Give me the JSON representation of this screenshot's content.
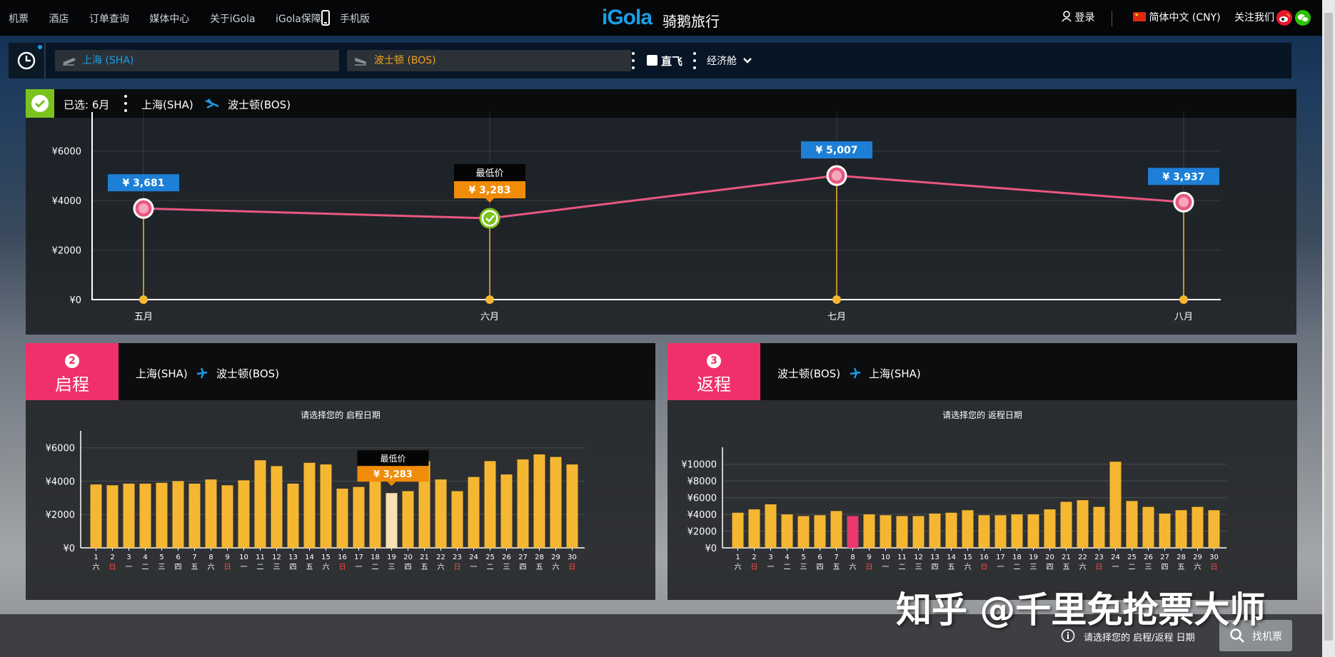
{
  "topnav": {
    "items": [
      "机票",
      "酒店",
      "订单查询",
      "媒体中心",
      "关于iGola",
      "iGola保障"
    ],
    "mobile_label": "手机版",
    "logo_text": "iGola",
    "logo_cn": "骑鹅旅行",
    "login": "登录",
    "language": "简体中文 (CNY)",
    "follow": "关注我们"
  },
  "search": {
    "from_value": "上海 (SHA)",
    "to_value": "波士顿 (BOS)",
    "direct_label": "直飞",
    "cabin_label": "经济舱"
  },
  "main": {
    "selected": "已选: 6月",
    "from": "上海(SHA)",
    "to": "波士顿(BOS)",
    "lowest_label": "最低价"
  },
  "outbound": {
    "num": "2",
    "title": "启程",
    "from": "上海(SHA)",
    "to": "波士顿(BOS)",
    "subtitle": "请选择您的 启程日期",
    "lowest_label": "最低价",
    "lowest_price": "¥ 3,283"
  },
  "return": {
    "num": "3",
    "title": "返程",
    "from": "波士顿(BOS)",
    "to": "上海(SHA)",
    "subtitle": "请选择您的 返程日期"
  },
  "footer": {
    "hint": "请选择您的 启程/返程 日期",
    "button": "找机票",
    "watermark": "知乎 @千里免抢票大师"
  },
  "colors": {
    "line": "#e9577f",
    "bar": "#f5b731",
    "accent_pink": "#f0306a",
    "label_blue": "#1e7fd6",
    "lowest_orange": "#f08c0a",
    "selected_green": "#7cc21e"
  },
  "chart_data": [
    {
      "type": "line",
      "categories": [
        "五月",
        "六月",
        "七月",
        "八月"
      ],
      "values": [
        3681,
        3283,
        5007,
        3937
      ],
      "value_labels": [
        "¥ 3,681",
        "¥ 3,283",
        "¥ 5,007",
        "¥ 3,937"
      ],
      "yticks": [
        "¥0",
        "¥2000",
        "¥4000",
        "¥6000"
      ],
      "ylim": [
        0,
        7000
      ],
      "selected_index": 1,
      "lowest_index": 1
    },
    {
      "type": "bar",
      "days": [
        "1",
        "2",
        "3",
        "4",
        "5",
        "6",
        "7",
        "8",
        "9",
        "10",
        "11",
        "12",
        "13",
        "14",
        "15",
        "16",
        "17",
        "18",
        "19",
        "20",
        "21",
        "22",
        "23",
        "24",
        "25",
        "26",
        "27",
        "28",
        "29",
        "30"
      ],
      "weekdays": [
        "六",
        "日",
        "一",
        "二",
        "三",
        "四",
        "五",
        "六",
        "日",
        "一",
        "二",
        "三",
        "四",
        "五",
        "六",
        "日",
        "一",
        "二",
        "三",
        "四",
        "五",
        "六",
        "日",
        "一",
        "二",
        "三",
        "四",
        "五",
        "六",
        "日"
      ],
      "values": [
        3800,
        3750,
        3850,
        3850,
        3900,
        4000,
        3850,
        4100,
        3750,
        4050,
        5250,
        4900,
        3850,
        5100,
        5000,
        3550,
        3650,
        4300,
        3283,
        3400,
        5200,
        4100,
        3400,
        4250,
        5200,
        4400,
        5300,
        5600,
        5450,
        5000
      ],
      "yticks": [
        "¥0",
        "¥2000",
        "¥4000",
        "¥6000"
      ],
      "ylim": [
        0,
        6500
      ],
      "highlight_index": 18
    },
    {
      "type": "bar",
      "days": [
        "1",
        "2",
        "3",
        "4",
        "5",
        "6",
        "7",
        "8",
        "9",
        "10",
        "11",
        "12",
        "13",
        "14",
        "15",
        "16",
        "17",
        "18",
        "19",
        "20",
        "21",
        "22",
        "23",
        "24",
        "25",
        "26",
        "27",
        "28",
        "29",
        "30"
      ],
      "weekdays": [
        "六",
        "日",
        "一",
        "二",
        "三",
        "四",
        "五",
        "六",
        "日",
        "一",
        "二",
        "三",
        "四",
        "五",
        "六",
        "日",
        "一",
        "二",
        "三",
        "四",
        "五",
        "六",
        "日",
        "一",
        "二",
        "三",
        "四",
        "五",
        "六",
        "日"
      ],
      "values": [
        4200,
        4600,
        5200,
        4000,
        3800,
        3900,
        4400,
        3800,
        4000,
        3900,
        3800,
        3800,
        4100,
        4200,
        4500,
        3900,
        3900,
        4000,
        4000,
        4600,
        5500,
        5700,
        4900,
        10300,
        5600,
        4900,
        4100,
        4500,
        4900,
        4500
      ],
      "yticks": [
        "¥0",
        "¥2000",
        "¥4000",
        "¥6000",
        "¥8000",
        "¥10000"
      ],
      "ylim": [
        0,
        11000
      ],
      "highlight_index": 7
    }
  ]
}
